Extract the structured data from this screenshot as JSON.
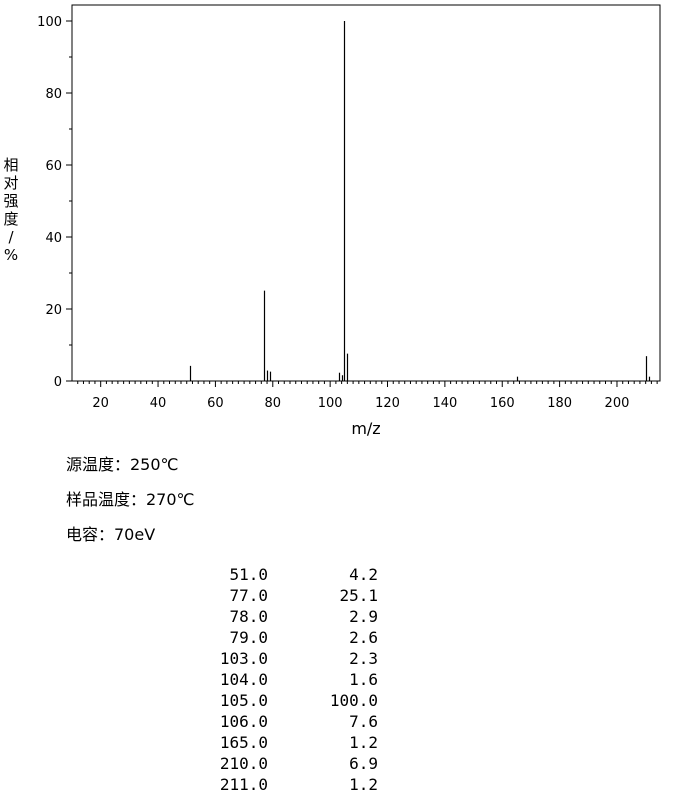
{
  "chart_data": {
    "type": "bar",
    "xlabel": "m/z",
    "ylabel": "相对强度/%",
    "xlim": [
      10,
      215
    ],
    "ylim": [
      0,
      100
    ],
    "xticks": [
      20,
      40,
      60,
      80,
      100,
      120,
      140,
      160,
      180,
      200
    ],
    "yticks": [
      0,
      20,
      40,
      60,
      80,
      100
    ],
    "grid": false,
    "x": [
      51.0,
      77.0,
      78.0,
      79.0,
      103.0,
      104.0,
      105.0,
      106.0,
      165.0,
      210.0,
      211.0
    ],
    "values": [
      4.2,
      25.1,
      2.9,
      2.6,
      2.3,
      1.6,
      100.0,
      7.6,
      1.2,
      6.9,
      1.2
    ]
  },
  "conditions": {
    "source_temp": "源温度：250℃",
    "sample_temp": "样品温度：270℃",
    "voltage": "电容：70eV"
  },
  "peak_table": [
    {
      "mz": "51.0",
      "abundance": "4.2"
    },
    {
      "mz": "77.0",
      "abundance": "25.1"
    },
    {
      "mz": "78.0",
      "abundance": "2.9"
    },
    {
      "mz": "79.0",
      "abundance": "2.6"
    },
    {
      "mz": "103.0",
      "abundance": "2.3"
    },
    {
      "mz": "104.0",
      "abundance": "1.6"
    },
    {
      "mz": "105.0",
      "abundance": "100.0"
    },
    {
      "mz": "106.0",
      "abundance": "7.6"
    },
    {
      "mz": "165.0",
      "abundance": "1.2"
    },
    {
      "mz": "210.0",
      "abundance": "6.9"
    },
    {
      "mz": "211.0",
      "abundance": "1.2"
    }
  ]
}
